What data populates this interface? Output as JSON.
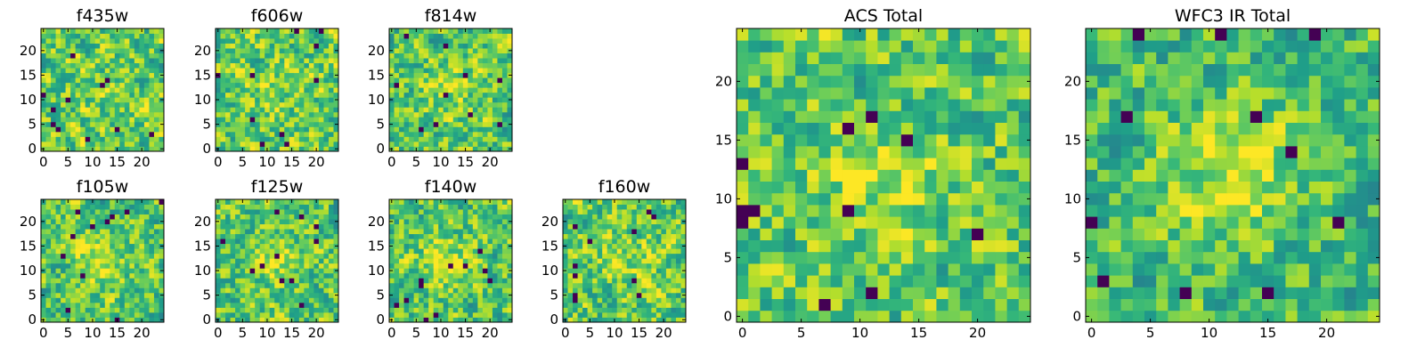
{
  "chart_data": [
    {
      "type": "heatmap",
      "title": "f435w",
      "size": 25,
      "colormap": "viridis",
      "seed": 11,
      "blob": 0.05,
      "xticks": [
        0,
        5,
        10,
        15,
        20
      ],
      "yticks": [
        0,
        5,
        10,
        15,
        20
      ],
      "xlim": [
        0,
        25
      ],
      "ylim": [
        0,
        25
      ]
    },
    {
      "type": "heatmap",
      "title": "f606w",
      "size": 25,
      "colormap": "viridis",
      "seed": 23,
      "blob": 0.1,
      "xticks": [
        0,
        5,
        10,
        15,
        20
      ],
      "yticks": [
        0,
        5,
        10,
        15,
        20
      ],
      "xlim": [
        0,
        25
      ],
      "ylim": [
        0,
        25
      ]
    },
    {
      "type": "heatmap",
      "title": "f814w",
      "size": 25,
      "colormap": "viridis",
      "seed": 37,
      "blob": 0.18,
      "xticks": [
        0,
        5,
        10,
        15,
        20
      ],
      "yticks": [
        0,
        5,
        10,
        15,
        20
      ],
      "xlim": [
        0,
        25
      ],
      "ylim": [
        0,
        25
      ]
    },
    {
      "type": "heatmap",
      "title": "f105w",
      "size": 25,
      "colormap": "viridis",
      "seed": 41,
      "blob": 0.3,
      "xticks": [
        0,
        5,
        10,
        15,
        20
      ],
      "yticks": [
        0,
        5,
        10,
        15,
        20
      ],
      "xlim": [
        0,
        25
      ],
      "ylim": [
        0,
        25
      ]
    },
    {
      "type": "heatmap",
      "title": "f125w",
      "size": 25,
      "colormap": "viridis",
      "seed": 53,
      "blob": 0.22,
      "xticks": [
        0,
        5,
        10,
        15,
        20
      ],
      "yticks": [
        0,
        5,
        10,
        15,
        20
      ],
      "xlim": [
        0,
        25
      ],
      "ylim": [
        0,
        25
      ]
    },
    {
      "type": "heatmap",
      "title": "f140w",
      "size": 25,
      "colormap": "viridis",
      "seed": 67,
      "blob": 0.25,
      "xticks": [
        0,
        5,
        10,
        15,
        20
      ],
      "yticks": [
        0,
        5,
        10,
        15,
        20
      ],
      "xlim": [
        0,
        25
      ],
      "ylim": [
        0,
        25
      ]
    },
    {
      "type": "heatmap",
      "title": "f160w",
      "size": 25,
      "colormap": "viridis",
      "seed": 79,
      "blob": 0.2,
      "xticks": [
        0,
        5,
        10,
        15,
        20
      ],
      "yticks": [
        0,
        5,
        10,
        15,
        20
      ],
      "xlim": [
        0,
        25
      ],
      "ylim": [
        0,
        25
      ]
    },
    {
      "type": "heatmap",
      "title": "ACS Total",
      "size": 25,
      "colormap": "viridis",
      "seed": 97,
      "blob": 0.22,
      "xticks": [
        0,
        5,
        10,
        15,
        20
      ],
      "yticks": [
        0,
        5,
        10,
        15,
        20
      ],
      "xlim": [
        0,
        25
      ],
      "ylim": [
        0,
        25
      ]
    },
    {
      "type": "heatmap",
      "title": "WFC3 IR Total",
      "size": 25,
      "colormap": "viridis",
      "seed": 113,
      "blob": 0.45,
      "xticks": [
        0,
        5,
        10,
        15,
        20
      ],
      "yticks": [
        0,
        5,
        10,
        15,
        20
      ],
      "xlim": [
        0,
        25
      ],
      "ylim": [
        0,
        25
      ]
    }
  ]
}
